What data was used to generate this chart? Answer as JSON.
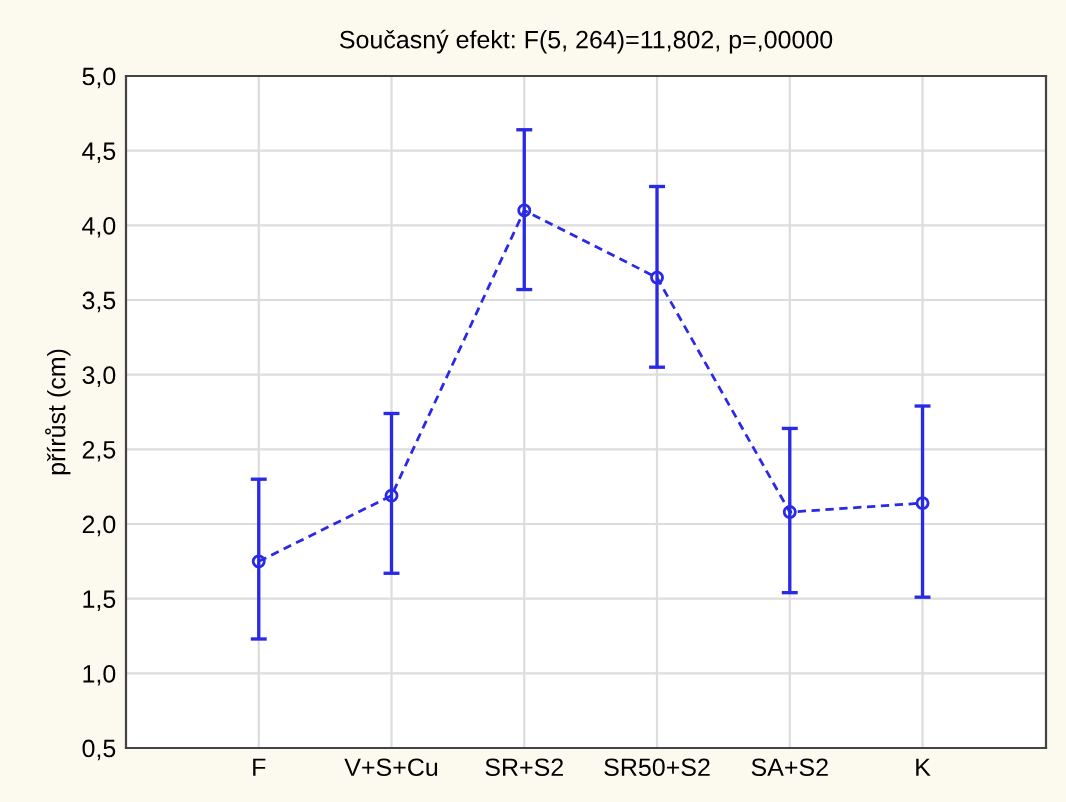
{
  "chart_data": {
    "type": "line",
    "title": "Současný efekt: F(5, 264)=11,802, p=,00000",
    "ylabel": "přírůst (cm)",
    "categories": [
      "F",
      "V+S+Cu",
      "SR+S2",
      "SR50+S2",
      "SA+S2",
      "K"
    ],
    "series": [
      {
        "color": "#2a2ae6",
        "values": [
          1.75,
          2.19,
          4.1,
          3.65,
          2.08,
          2.14
        ],
        "errors": [
          [
            1.23,
            2.3
          ],
          [
            1.67,
            2.74
          ],
          [
            3.57,
            4.64
          ],
          [
            3.05,
            4.26
          ],
          [
            1.54,
            2.64
          ],
          [
            1.51,
            2.79
          ]
        ]
      }
    ],
    "ylim": [
      0.5,
      5.0
    ],
    "yticks": [
      {
        "value": 0.5,
        "label": "0,5"
      },
      {
        "value": 1.0,
        "label": "1,0"
      },
      {
        "value": 1.5,
        "label": "1,5"
      },
      {
        "value": 2.0,
        "label": "2,0"
      },
      {
        "value": 2.5,
        "label": "2,5"
      },
      {
        "value": 3.0,
        "label": "3,0"
      },
      {
        "value": 3.5,
        "label": "3,5"
      },
      {
        "value": 4.0,
        "label": "4,0"
      },
      {
        "value": 4.5,
        "label": "4,5"
      },
      {
        "value": 5.0,
        "label": "5,0"
      }
    ],
    "grid": true,
    "marker": "circle",
    "line_style": "dashed"
  }
}
